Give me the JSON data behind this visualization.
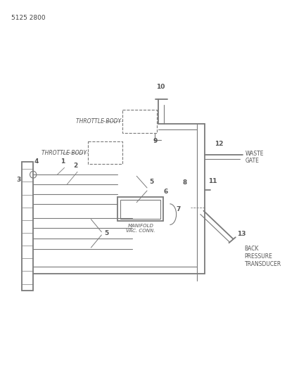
{
  "title": "5125 2800",
  "bg_color": "#ffffff",
  "line_color": "#7a7a7a",
  "text_color": "#555555",
  "label_texts": {
    "throttle_body_1": "THROTTLE BODY",
    "throttle_body_2": "THROTTLE BODY",
    "manifold_vac": "MANIFOLD\nVAC. CONN.",
    "waste_gate": "WASTE\nGATE",
    "back_pressure": "BACK\nPRESSURE\nTRANSDUCER"
  },
  "numbers": [
    "1",
    "2",
    "3",
    "4",
    "5",
    "5",
    "6",
    "7",
    "8",
    "9",
    "10",
    "11",
    "12",
    "13"
  ]
}
